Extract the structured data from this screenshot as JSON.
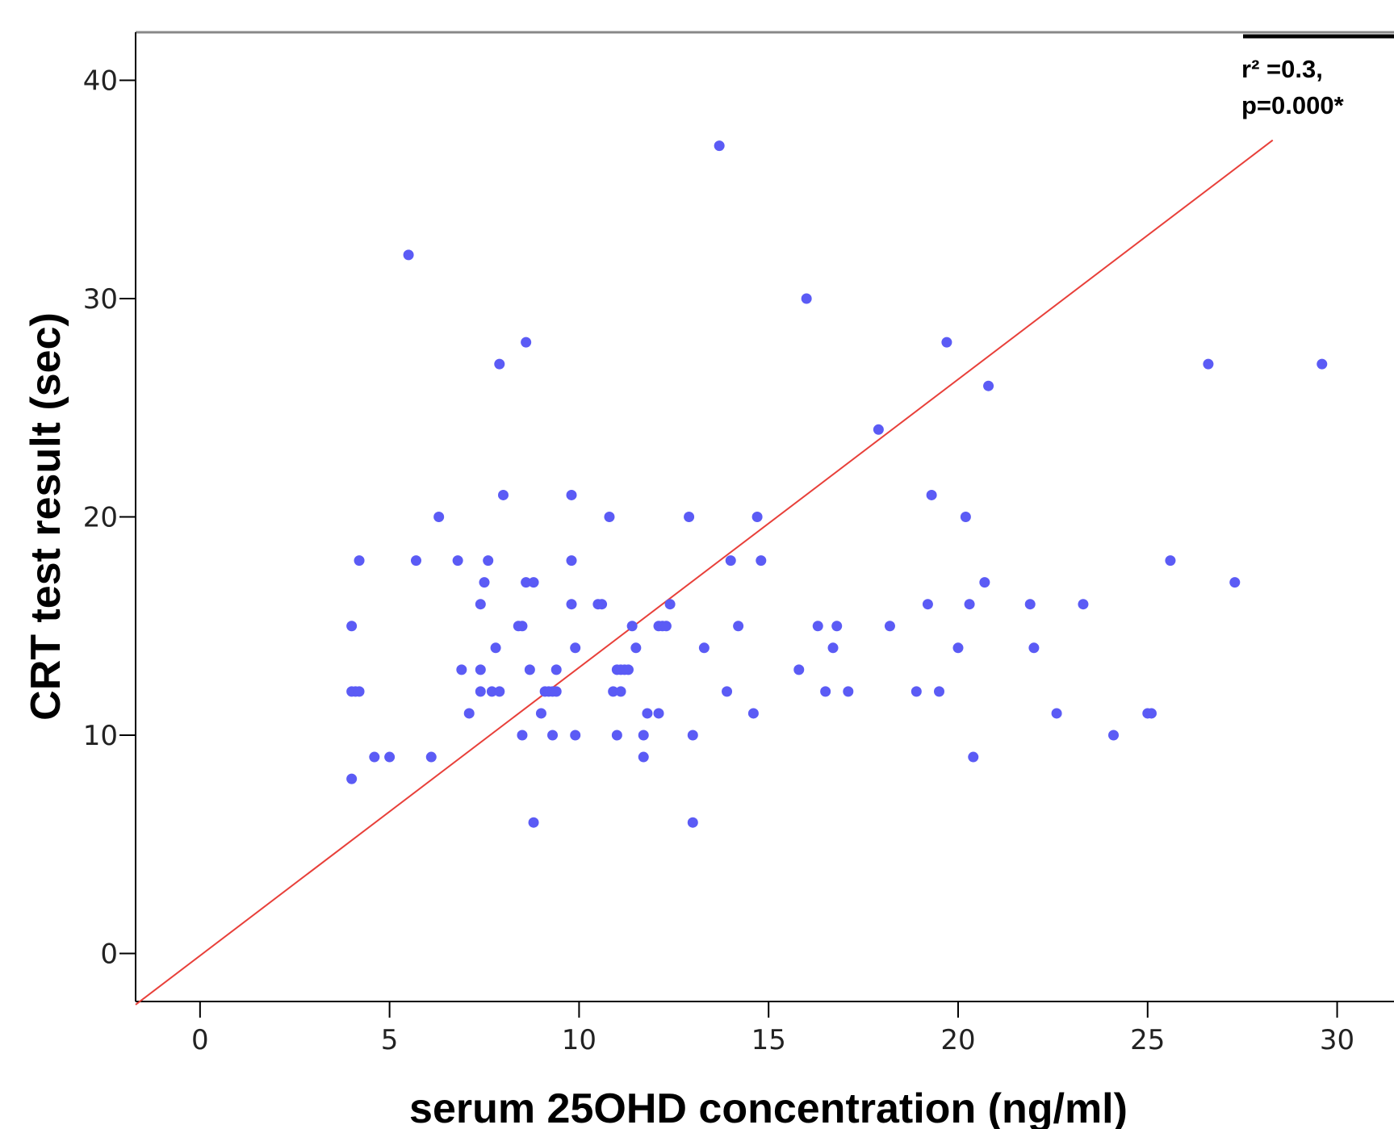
{
  "chart_data": {
    "type": "scatter",
    "xlabel": "serum 25OHD concentration (ng/ml)",
    "ylabel": "CRT test result (sec)",
    "xlim": [
      -1.7,
      31.5
    ],
    "ylim": [
      -2.2,
      42.2
    ],
    "xticks": [
      0,
      5,
      10,
      15,
      20,
      25,
      30
    ],
    "yticks": [
      0,
      10,
      20,
      30,
      40
    ],
    "annotation_line1": "r² =0.3,",
    "annotation_line2": "p=0.000*",
    "point_color": "#5b5bf5",
    "fit_color": "#e8403a",
    "fit_line": {
      "slope": 1.32,
      "intercept": -0.1
    },
    "points": [
      {
        "x": 4.0,
        "y": 15
      },
      {
        "x": 4.0,
        "y": 12
      },
      {
        "x": 4.1,
        "y": 12
      },
      {
        "x": 4.2,
        "y": 12
      },
      {
        "x": 4.0,
        "y": 8
      },
      {
        "x": 4.2,
        "y": 18
      },
      {
        "x": 4.6,
        "y": 9
      },
      {
        "x": 5.0,
        "y": 9
      },
      {
        "x": 5.5,
        "y": 32
      },
      {
        "x": 5.7,
        "y": 18
      },
      {
        "x": 6.1,
        "y": 9
      },
      {
        "x": 6.3,
        "y": 20
      },
      {
        "x": 6.8,
        "y": 18
      },
      {
        "x": 6.9,
        "y": 13
      },
      {
        "x": 7.1,
        "y": 11
      },
      {
        "x": 7.4,
        "y": 16
      },
      {
        "x": 7.4,
        "y": 13
      },
      {
        "x": 7.4,
        "y": 12
      },
      {
        "x": 7.5,
        "y": 17
      },
      {
        "x": 7.6,
        "y": 18
      },
      {
        "x": 7.7,
        "y": 12
      },
      {
        "x": 7.8,
        "y": 14
      },
      {
        "x": 7.9,
        "y": 12
      },
      {
        "x": 7.9,
        "y": 27
      },
      {
        "x": 8.0,
        "y": 21
      },
      {
        "x": 8.4,
        "y": 15
      },
      {
        "x": 8.5,
        "y": 15
      },
      {
        "x": 8.5,
        "y": 10
      },
      {
        "x": 8.6,
        "y": 17
      },
      {
        "x": 8.6,
        "y": 28
      },
      {
        "x": 8.7,
        "y": 13
      },
      {
        "x": 8.8,
        "y": 17
      },
      {
        "x": 8.8,
        "y": 6
      },
      {
        "x": 9.0,
        "y": 11
      },
      {
        "x": 9.1,
        "y": 12
      },
      {
        "x": 9.2,
        "y": 12
      },
      {
        "x": 9.3,
        "y": 10
      },
      {
        "x": 9.3,
        "y": 12
      },
      {
        "x": 9.4,
        "y": 13
      },
      {
        "x": 9.4,
        "y": 12
      },
      {
        "x": 9.8,
        "y": 18
      },
      {
        "x": 9.8,
        "y": 21
      },
      {
        "x": 9.8,
        "y": 16
      },
      {
        "x": 9.9,
        "y": 14
      },
      {
        "x": 9.9,
        "y": 10
      },
      {
        "x": 10.5,
        "y": 16
      },
      {
        "x": 10.6,
        "y": 16
      },
      {
        "x": 10.8,
        "y": 20
      },
      {
        "x": 10.9,
        "y": 12
      },
      {
        "x": 11.0,
        "y": 13
      },
      {
        "x": 11.0,
        "y": 10
      },
      {
        "x": 11.1,
        "y": 12
      },
      {
        "x": 11.1,
        "y": 13
      },
      {
        "x": 11.2,
        "y": 13
      },
      {
        "x": 11.3,
        "y": 13
      },
      {
        "x": 11.4,
        "y": 15
      },
      {
        "x": 11.5,
        "y": 14
      },
      {
        "x": 11.7,
        "y": 10
      },
      {
        "x": 11.7,
        "y": 9
      },
      {
        "x": 11.8,
        "y": 11
      },
      {
        "x": 12.1,
        "y": 11
      },
      {
        "x": 12.1,
        "y": 15
      },
      {
        "x": 12.2,
        "y": 15
      },
      {
        "x": 12.3,
        "y": 15
      },
      {
        "x": 12.4,
        "y": 16
      },
      {
        "x": 12.9,
        "y": 20
      },
      {
        "x": 13.0,
        "y": 10
      },
      {
        "x": 13.0,
        "y": 6
      },
      {
        "x": 13.3,
        "y": 14
      },
      {
        "x": 13.7,
        "y": 37
      },
      {
        "x": 13.9,
        "y": 12
      },
      {
        "x": 14.0,
        "y": 18
      },
      {
        "x": 14.2,
        "y": 15
      },
      {
        "x": 14.6,
        "y": 11
      },
      {
        "x": 14.7,
        "y": 20
      },
      {
        "x": 14.8,
        "y": 18
      },
      {
        "x": 15.8,
        "y": 13
      },
      {
        "x": 16.0,
        "y": 30
      },
      {
        "x": 16.3,
        "y": 15
      },
      {
        "x": 16.5,
        "y": 12
      },
      {
        "x": 16.7,
        "y": 14
      },
      {
        "x": 16.8,
        "y": 15
      },
      {
        "x": 17.1,
        "y": 12
      },
      {
        "x": 17.9,
        "y": 24
      },
      {
        "x": 18.2,
        "y": 15
      },
      {
        "x": 18.9,
        "y": 12
      },
      {
        "x": 19.2,
        "y": 16
      },
      {
        "x": 19.3,
        "y": 21
      },
      {
        "x": 19.5,
        "y": 12
      },
      {
        "x": 19.7,
        "y": 28
      },
      {
        "x": 20.0,
        "y": 14
      },
      {
        "x": 20.2,
        "y": 20
      },
      {
        "x": 20.3,
        "y": 16
      },
      {
        "x": 20.4,
        "y": 9
      },
      {
        "x": 20.7,
        "y": 17
      },
      {
        "x": 20.8,
        "y": 26
      },
      {
        "x": 21.9,
        "y": 16
      },
      {
        "x": 22.0,
        "y": 14
      },
      {
        "x": 22.6,
        "y": 11
      },
      {
        "x": 23.3,
        "y": 16
      },
      {
        "x": 24.1,
        "y": 10
      },
      {
        "x": 25.0,
        "y": 11
      },
      {
        "x": 25.1,
        "y": 11
      },
      {
        "x": 25.6,
        "y": 18
      },
      {
        "x": 26.6,
        "y": 27
      },
      {
        "x": 27.3,
        "y": 17
      },
      {
        "x": 29.6,
        "y": 27
      }
    ]
  }
}
